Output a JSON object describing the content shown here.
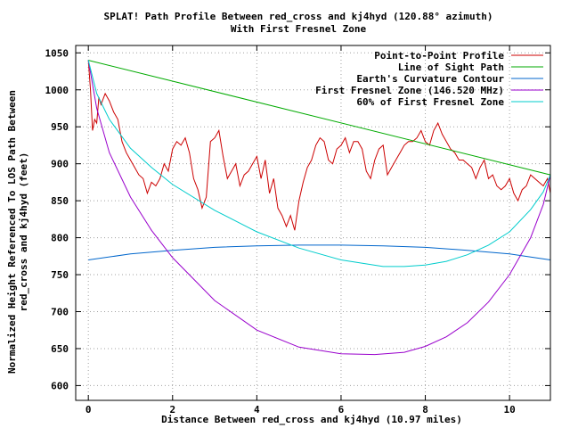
{
  "chart_data": {
    "type": "line",
    "title": "SPLAT! Path Profile Between red_cross and kj4hyd (120.88° azimuth)",
    "subtitle": "With First Fresnel Zone",
    "xlabel": "Distance Between red_cross and kj4hyd (10.97 miles)",
    "ylabel_line1": "Normalized Height Referenced To LOS Path Between",
    "ylabel_line2": "red_cross and kj4hyd (feet)",
    "xlim": [
      -0.3,
      10.97
    ],
    "ylim": [
      580,
      1060
    ],
    "xticks": [
      0,
      2,
      4,
      6,
      8,
      10
    ],
    "yticks": [
      600,
      650,
      700,
      750,
      800,
      850,
      900,
      950,
      1000,
      1050
    ],
    "grid": true,
    "legend_position": "top-right",
    "series": [
      {
        "name": "Point-to-Point Profile",
        "color": "#cc0000",
        "x": [
          0,
          0.05,
          0.1,
          0.15,
          0.2,
          0.25,
          0.3,
          0.4,
          0.5,
          0.6,
          0.7,
          0.8,
          0.9,
          1.0,
          1.1,
          1.2,
          1.3,
          1.4,
          1.5,
          1.6,
          1.7,
          1.8,
          1.9,
          2.0,
          2.1,
          2.2,
          2.3,
          2.4,
          2.5,
          2.6,
          2.7,
          2.8,
          2.9,
          3.0,
          3.1,
          3.2,
          3.3,
          3.4,
          3.5,
          3.6,
          3.7,
          3.8,
          3.9,
          4.0,
          4.1,
          4.2,
          4.3,
          4.4,
          4.5,
          4.6,
          4.7,
          4.8,
          4.9,
          5.0,
          5.1,
          5.2,
          5.3,
          5.4,
          5.5,
          5.6,
          5.7,
          5.8,
          5.9,
          6.0,
          6.1,
          6.2,
          6.3,
          6.4,
          6.5,
          6.6,
          6.7,
          6.8,
          6.9,
          7.0,
          7.1,
          7.2,
          7.3,
          7.4,
          7.5,
          7.6,
          7.7,
          7.8,
          7.9,
          8.0,
          8.1,
          8.2,
          8.3,
          8.4,
          8.5,
          8.6,
          8.7,
          8.8,
          8.9,
          9.0,
          9.1,
          9.2,
          9.3,
          9.4,
          9.5,
          9.6,
          9.7,
          9.8,
          9.9,
          10.0,
          10.1,
          10.2,
          10.3,
          10.4,
          10.5,
          10.6,
          10.7,
          10.8,
          10.9,
          10.97
        ],
        "y": [
          1040,
          1000,
          945,
          960,
          955,
          990,
          980,
          995,
          985,
          970,
          960,
          930,
          915,
          905,
          895,
          885,
          880,
          860,
          875,
          870,
          880,
          900,
          890,
          920,
          930,
          925,
          935,
          915,
          880,
          865,
          840,
          855,
          930,
          935,
          945,
          910,
          880,
          890,
          900,
          870,
          885,
          890,
          900,
          910,
          880,
          905,
          860,
          880,
          840,
          830,
          815,
          830,
          810,
          850,
          875,
          895,
          905,
          925,
          935,
          930,
          905,
          900,
          920,
          925,
          935,
          915,
          930,
          930,
          920,
          890,
          880,
          905,
          920,
          925,
          885,
          895,
          905,
          915,
          925,
          930,
          930,
          935,
          945,
          930,
          925,
          945,
          955,
          940,
          930,
          920,
          915,
          905,
          905,
          900,
          895,
          880,
          895,
          905,
          880,
          885,
          870,
          865,
          870,
          880,
          860,
          850,
          865,
          870,
          885,
          880,
          875,
          870,
          880,
          860
        ]
      },
      {
        "name": "Line of Sight Path",
        "color": "#00aa00",
        "x": [
          0,
          10.97
        ],
        "y": [
          1040,
          885
        ]
      },
      {
        "name": "Earth's Curvature Contour",
        "color": "#0066cc",
        "x": [
          0,
          1,
          2,
          3,
          4,
          5,
          5.5,
          6,
          7,
          8,
          9,
          10,
          10.97
        ],
        "y": [
          770,
          778,
          783,
          787,
          789,
          790,
          790,
          790,
          789,
          787,
          783,
          778,
          770
        ]
      },
      {
        "name": "First Fresnel Zone (146.520 MHz)",
        "color": "#9900cc",
        "x": [
          0,
          0.2,
          0.5,
          1,
          1.5,
          2,
          3,
          4,
          5,
          6,
          6.8,
          7.5,
          8,
          8.5,
          9,
          9.5,
          10,
          10.5,
          10.8,
          10.97
        ],
        "y": [
          1040,
          975,
          915,
          855,
          810,
          773,
          715,
          675,
          652,
          643,
          642,
          645,
          653,
          666,
          685,
          713,
          750,
          800,
          845,
          885
        ]
      },
      {
        "name": "60% of First Fresnel Zone",
        "color": "#00cccc",
        "x": [
          0,
          0.2,
          0.5,
          1,
          1.5,
          2,
          3,
          4,
          5,
          6,
          7,
          7.5,
          8,
          8.5,
          9,
          9.5,
          10,
          10.5,
          10.8,
          10.97
        ],
        "y": [
          1040,
          995,
          960,
          921,
          895,
          872,
          837,
          808,
          786,
          770,
          761,
          761,
          763,
          768,
          777,
          790,
          808,
          838,
          862,
          885
        ]
      }
    ]
  }
}
